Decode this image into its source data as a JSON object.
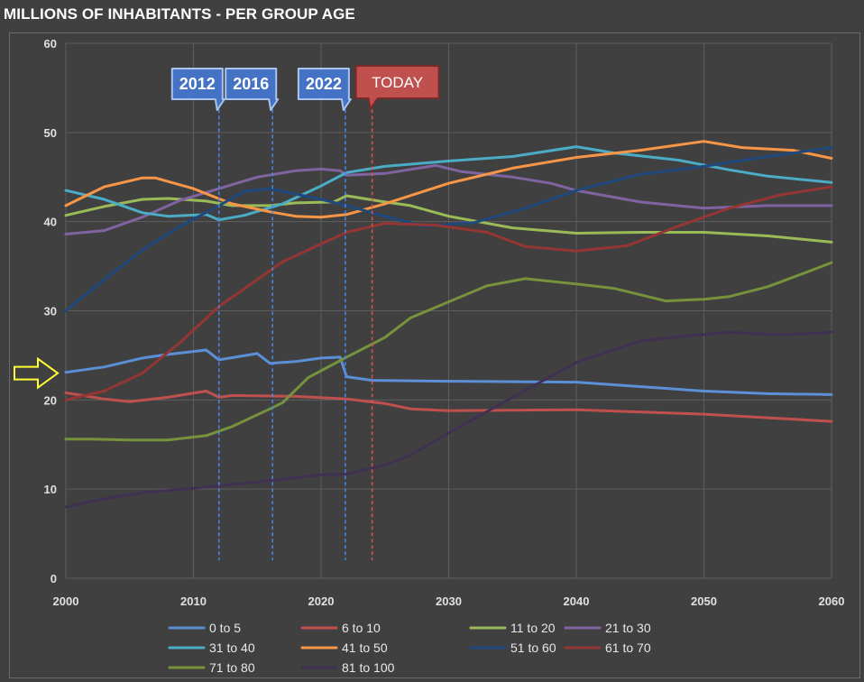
{
  "chart_data": {
    "type": "line",
    "title": "MILLIONS OF INHABITANTS - PER GROUP AGE",
    "xlabel": "",
    "ylabel": "",
    "xlim": [
      2000,
      2060
    ],
    "ylim": [
      0,
      60
    ],
    "x_ticks": [
      "2000",
      "2010",
      "2020",
      "2030",
      "2040",
      "2050",
      "2060"
    ],
    "y_ticks": [
      "0",
      "10",
      "20",
      "30",
      "40",
      "50",
      "60"
    ],
    "grid": true,
    "legend_position": "bottom",
    "markers": [
      {
        "label": "2012",
        "x": 2012,
        "color": "#4472c4"
      },
      {
        "label": "2016",
        "x": 2016.2,
        "color": "#4472c4"
      },
      {
        "label": "2022",
        "x": 2021.9,
        "color": "#4472c4"
      },
      {
        "label": "TODAY",
        "x": 2024,
        "color": "#c0504d"
      }
    ],
    "arrow_at_y": 23,
    "series": [
      {
        "name": "0 to 5",
        "color": "#5b8fd6",
        "points": [
          [
            2000,
            23.1
          ],
          [
            2003,
            23.7
          ],
          [
            2006,
            24.7
          ],
          [
            2008,
            25.1
          ],
          [
            2011,
            25.6
          ],
          [
            2012,
            24.5
          ],
          [
            2015,
            25.2
          ],
          [
            2016,
            24.1
          ],
          [
            2018,
            24.3
          ],
          [
            2020,
            24.7
          ],
          [
            2021.5,
            24.8
          ],
          [
            2022,
            22.6
          ],
          [
            2024,
            22.2
          ],
          [
            2030,
            22.1
          ],
          [
            2040,
            22.0
          ],
          [
            2050,
            21.0
          ],
          [
            2055,
            20.7
          ],
          [
            2060,
            20.6
          ]
        ]
      },
      {
        "name": "6 to 10",
        "color": "#c0504d",
        "points": [
          [
            2000,
            20.8
          ],
          [
            2003,
            20.1
          ],
          [
            2005,
            19.8
          ],
          [
            2008,
            20.3
          ],
          [
            2011,
            21.0
          ],
          [
            2012,
            20.3
          ],
          [
            2013,
            20.5
          ],
          [
            2018,
            20.4
          ],
          [
            2022,
            20.1
          ],
          [
            2025,
            19.6
          ],
          [
            2027,
            19.0
          ],
          [
            2030,
            18.8
          ],
          [
            2040,
            18.9
          ],
          [
            2050,
            18.4
          ],
          [
            2055,
            18.0
          ],
          [
            2060,
            17.6
          ]
        ]
      },
      {
        "name": "11 to 20",
        "color": "#9bbb59",
        "points": [
          [
            2000,
            40.7
          ],
          [
            2003,
            41.7
          ],
          [
            2006,
            42.5
          ],
          [
            2008,
            42.6
          ],
          [
            2011,
            42.3
          ],
          [
            2013,
            41.8
          ],
          [
            2016,
            41.8
          ],
          [
            2018,
            42.1
          ],
          [
            2021,
            42.2
          ],
          [
            2022,
            42.9
          ],
          [
            2025,
            42.2
          ],
          [
            2027,
            41.8
          ],
          [
            2030,
            40.6
          ],
          [
            2035,
            39.3
          ],
          [
            2040,
            38.7
          ],
          [
            2045,
            38.8
          ],
          [
            2050,
            38.8
          ],
          [
            2055,
            38.4
          ],
          [
            2060,
            37.7
          ]
        ]
      },
      {
        "name": "21 to 30",
        "color": "#8064a2",
        "points": [
          [
            2000,
            38.6
          ],
          [
            2003,
            39.0
          ],
          [
            2006,
            40.5
          ],
          [
            2009,
            42.4
          ],
          [
            2012,
            43.7
          ],
          [
            2015,
            45.0
          ],
          [
            2018,
            45.7
          ],
          [
            2020,
            45.9
          ],
          [
            2021.5,
            45.7
          ],
          [
            2022,
            45.2
          ],
          [
            2025,
            45.4
          ],
          [
            2029,
            46.3
          ],
          [
            2031,
            45.6
          ],
          [
            2035,
            45.0
          ],
          [
            2038,
            44.3
          ],
          [
            2040,
            43.5
          ],
          [
            2045,
            42.2
          ],
          [
            2050,
            41.5
          ],
          [
            2055,
            41.8
          ],
          [
            2060,
            41.8
          ]
        ]
      },
      {
        "name": "31 to 40",
        "color": "#4bacc6",
        "points": [
          [
            2000,
            43.5
          ],
          [
            2003,
            42.5
          ],
          [
            2006,
            41.0
          ],
          [
            2008,
            40.6
          ],
          [
            2011,
            40.8
          ],
          [
            2012,
            40.2
          ],
          [
            2014,
            40.7
          ],
          [
            2017,
            42.0
          ],
          [
            2020,
            44.0
          ],
          [
            2022,
            45.5
          ],
          [
            2025,
            46.2
          ],
          [
            2030,
            46.8
          ],
          [
            2035,
            47.3
          ],
          [
            2040,
            48.4
          ],
          [
            2043,
            47.7
          ],
          [
            2048,
            46.9
          ],
          [
            2052,
            45.8
          ],
          [
            2055,
            45.1
          ],
          [
            2060,
            44.4
          ]
        ]
      },
      {
        "name": "41 to 50",
        "color": "#f79646",
        "points": [
          [
            2000,
            41.8
          ],
          [
            2003,
            43.9
          ],
          [
            2006,
            44.9
          ],
          [
            2007,
            44.9
          ],
          [
            2010,
            43.7
          ],
          [
            2013,
            42.0
          ],
          [
            2016,
            41.1
          ],
          [
            2018,
            40.6
          ],
          [
            2020,
            40.5
          ],
          [
            2022,
            40.8
          ],
          [
            2025,
            42.0
          ],
          [
            2030,
            44.3
          ],
          [
            2035,
            46.0
          ],
          [
            2040,
            47.2
          ],
          [
            2045,
            48.0
          ],
          [
            2050,
            49.0
          ],
          [
            2053,
            48.3
          ],
          [
            2057,
            48.0
          ],
          [
            2060,
            47.1
          ]
        ]
      },
      {
        "name": "51 to 60",
        "color": "#1f497d",
        "points": [
          [
            2000,
            30.0
          ],
          [
            2003,
            33.5
          ],
          [
            2006,
            36.8
          ],
          [
            2009,
            39.5
          ],
          [
            2012,
            41.8
          ],
          [
            2014,
            43.4
          ],
          [
            2016,
            43.7
          ],
          [
            2020,
            42.5
          ],
          [
            2022,
            41.8
          ],
          [
            2025,
            40.6
          ],
          [
            2028,
            39.5
          ],
          [
            2032,
            39.9
          ],
          [
            2036,
            41.5
          ],
          [
            2040,
            43.5
          ],
          [
            2045,
            45.3
          ],
          [
            2050,
            46.2
          ],
          [
            2055,
            47.3
          ],
          [
            2060,
            48.3
          ]
        ]
      },
      {
        "name": "61 to 70",
        "color": "#943634",
        "points": [
          [
            2000,
            20.0
          ],
          [
            2003,
            21.0
          ],
          [
            2006,
            23.0
          ],
          [
            2009,
            26.5
          ],
          [
            2012,
            30.5
          ],
          [
            2015,
            33.5
          ],
          [
            2017,
            35.5
          ],
          [
            2020,
            37.5
          ],
          [
            2022,
            38.8
          ],
          [
            2025,
            39.8
          ],
          [
            2029,
            39.6
          ],
          [
            2033,
            38.8
          ],
          [
            2036,
            37.2
          ],
          [
            2040,
            36.7
          ],
          [
            2044,
            37.3
          ],
          [
            2048,
            39.5
          ],
          [
            2052,
            41.5
          ],
          [
            2056,
            43.0
          ],
          [
            2060,
            43.9
          ]
        ]
      },
      {
        "name": "71 to 80",
        "color": "#76923c",
        "points": [
          [
            2000,
            15.6
          ],
          [
            2002,
            15.6
          ],
          [
            2005,
            15.5
          ],
          [
            2008,
            15.5
          ],
          [
            2011,
            16.0
          ],
          [
            2013,
            17.0
          ],
          [
            2016,
            19.0
          ],
          [
            2017,
            19.7
          ],
          [
            2019,
            22.5
          ],
          [
            2022,
            24.8
          ],
          [
            2025,
            27.0
          ],
          [
            2027,
            29.2
          ],
          [
            2030,
            31.0
          ],
          [
            2033,
            32.8
          ],
          [
            2036,
            33.6
          ],
          [
            2040,
            33.0
          ],
          [
            2043,
            32.5
          ],
          [
            2047,
            31.1
          ],
          [
            2050,
            31.3
          ],
          [
            2052,
            31.6
          ],
          [
            2055,
            32.7
          ],
          [
            2058,
            34.3
          ],
          [
            2060,
            35.4
          ]
        ]
      },
      {
        "name": "81 to 100",
        "color": "#403152",
        "points": [
          [
            2000,
            8.0
          ],
          [
            2003,
            8.9
          ],
          [
            2006,
            9.6
          ],
          [
            2010,
            10.1
          ],
          [
            2015,
            10.8
          ],
          [
            2020,
            11.6
          ],
          [
            2022,
            11.7
          ],
          [
            2025,
            12.7
          ],
          [
            2027,
            13.8
          ],
          [
            2030,
            16.3
          ],
          [
            2035,
            20.3
          ],
          [
            2040,
            24.2
          ],
          [
            2045,
            26.6
          ],
          [
            2048,
            27.1
          ],
          [
            2052,
            27.6
          ],
          [
            2056,
            27.3
          ],
          [
            2060,
            27.6
          ]
        ]
      }
    ]
  }
}
